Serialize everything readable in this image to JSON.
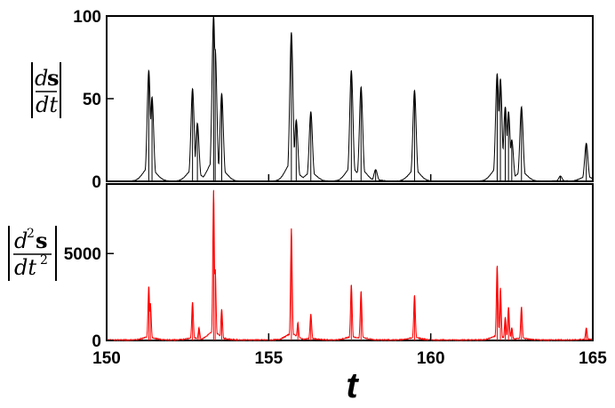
{
  "chart_data": [
    {
      "type": "line",
      "panel": "top",
      "ylabel": "|ds/dt|",
      "xlim": [
        150,
        165
      ],
      "ylim": [
        0,
        100
      ],
      "xticks": [
        150,
        155,
        160,
        165
      ],
      "yticks": [
        0,
        50,
        100
      ],
      "grid": false,
      "color": "#000000",
      "series": [
        {
          "peaks": [
            {
              "t": 151.3,
              "value": 67
            },
            {
              "t": 151.4,
              "value": 51
            },
            {
              "t": 152.65,
              "value": 56
            },
            {
              "t": 152.8,
              "value": 35
            },
            {
              "t": 153.3,
              "value": 100
            },
            {
              "t": 153.35,
              "value": 80
            },
            {
              "t": 153.55,
              "value": 53
            },
            {
              "t": 155.7,
              "value": 90
            },
            {
              "t": 155.85,
              "value": 37
            },
            {
              "t": 156.3,
              "value": 42
            },
            {
              "t": 157.55,
              "value": 67
            },
            {
              "t": 157.85,
              "value": 57
            },
            {
              "t": 158.3,
              "value": 7
            },
            {
              "t": 159.5,
              "value": 55
            },
            {
              "t": 162.05,
              "value": 65
            },
            {
              "t": 162.15,
              "value": 62
            },
            {
              "t": 162.3,
              "value": 45
            },
            {
              "t": 162.4,
              "value": 42
            },
            {
              "t": 162.5,
              "value": 25
            },
            {
              "t": 162.8,
              "value": 45
            },
            {
              "t": 164.0,
              "value": 3
            },
            {
              "t": 164.8,
              "value": 23
            }
          ]
        }
      ]
    },
    {
      "type": "line",
      "panel": "bottom",
      "ylabel": "|d²s/dt²|",
      "xlabel": "t",
      "xlim": [
        150,
        165
      ],
      "ylim": [
        0,
        9000
      ],
      "xticks": [
        150,
        155,
        160,
        165
      ],
      "yticks": [
        0,
        5000
      ],
      "grid": false,
      "color": "#ff0000",
      "series": [
        {
          "peaks": [
            {
              "t": 151.3,
              "value": 3100
            },
            {
              "t": 151.35,
              "value": 2100
            },
            {
              "t": 152.65,
              "value": 2200
            },
            {
              "t": 152.85,
              "value": 700
            },
            {
              "t": 153.3,
              "value": 8600
            },
            {
              "t": 153.35,
              "value": 4100
            },
            {
              "t": 153.55,
              "value": 1800
            },
            {
              "t": 155.7,
              "value": 6400
            },
            {
              "t": 155.9,
              "value": 1000
            },
            {
              "t": 156.3,
              "value": 1500
            },
            {
              "t": 157.55,
              "value": 3200
            },
            {
              "t": 157.85,
              "value": 2800
            },
            {
              "t": 159.5,
              "value": 2600
            },
            {
              "t": 162.05,
              "value": 4300
            },
            {
              "t": 162.15,
              "value": 3000
            },
            {
              "t": 162.3,
              "value": 1300
            },
            {
              "t": 162.4,
              "value": 1900
            },
            {
              "t": 162.5,
              "value": 700
            },
            {
              "t": 162.8,
              "value": 1900
            },
            {
              "t": 164.8,
              "value": 700
            }
          ]
        }
      ]
    }
  ]
}
